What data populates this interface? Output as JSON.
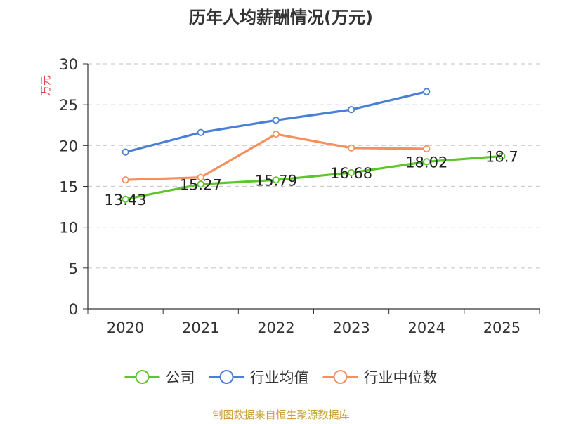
{
  "chart_data": {
    "type": "line",
    "title": "历年人均薪酬情况(万元)",
    "ylabel": "万元",
    "xlabel": "",
    "ylim": [
      0,
      30
    ],
    "yticks": [
      0,
      5,
      10,
      15,
      20,
      25,
      30
    ],
    "categories": [
      "2020",
      "2021",
      "2022",
      "2023",
      "2024",
      "2025"
    ],
    "grid": true,
    "legend_position": "bottom-center",
    "series": [
      {
        "key": "company",
        "name": "公司",
        "color": "#5cc72a",
        "values": [
          13.43,
          15.27,
          15.79,
          16.68,
          18.02,
          18.7
        ],
        "labels": [
          "13.43",
          "15.27",
          "15.79",
          "16.68",
          "18.02",
          "18.7"
        ]
      },
      {
        "key": "industry-mean",
        "name": "行业均值",
        "color": "#4a7fd8",
        "values": [
          19.2,
          21.6,
          23.1,
          24.4,
          26.6,
          null
        ]
      },
      {
        "key": "industry-median",
        "name": "行业中位数",
        "color": "#f58f5c",
        "values": [
          15.8,
          16.1,
          21.4,
          19.7,
          19.6,
          null
        ]
      }
    ]
  },
  "footer": {
    "source": "制图数据来自恒生聚源数据库",
    "source_color": "#c8a13c"
  }
}
